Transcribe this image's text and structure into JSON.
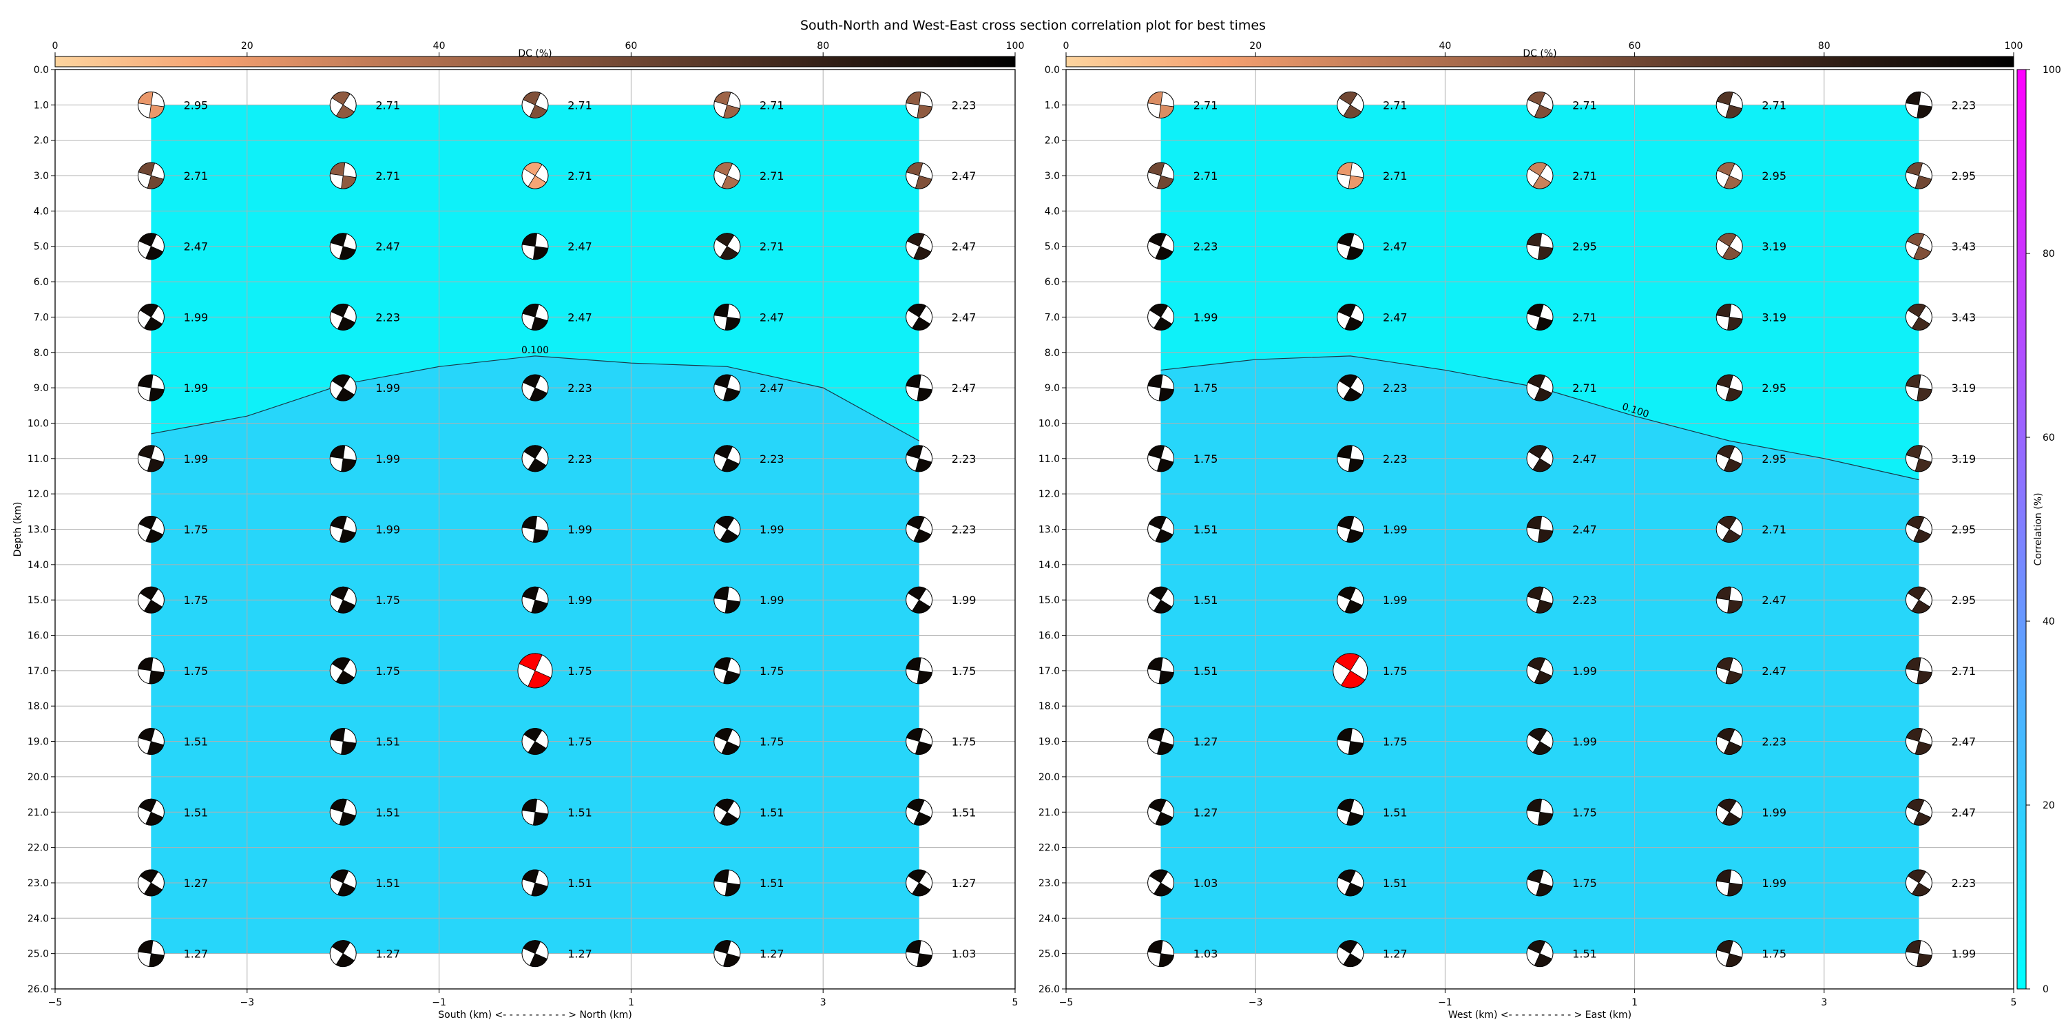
{
  "figure": {
    "title": "South-North and West-East cross section correlation plot for best times"
  },
  "colors": {
    "region_high": "#0ef1f9",
    "region_low": "#27d6fa",
    "focal_dark": "#000000",
    "best_solution": "#ff0000",
    "grid": "#b0b0b0",
    "dc_cmap": [
      "#fdd49e",
      "#f4a070",
      "#c07a56",
      "#8f5a40",
      "#5c3a2a",
      "#2a1a12",
      "#000000"
    ],
    "corr_cmap": [
      "#00ffff",
      "#ff00ff"
    ]
  },
  "colorbars": {
    "dc": {
      "label": "DC (%)",
      "ticks": [
        "0",
        "20",
        "40",
        "60",
        "80",
        "100"
      ]
    },
    "corr": {
      "label": "Correlation (%)",
      "ticks": [
        "0",
        "20",
        "40",
        "60",
        "80",
        "100"
      ]
    }
  },
  "chart_data": [
    {
      "type": "heatmap",
      "title": "",
      "xlabel": "South (km) <- - - - - - - - - - > North (km)",
      "ylabel": "Depth (km)",
      "xlim": [
        -5,
        5
      ],
      "ylim": [
        26,
        0
      ],
      "x_ticks": [
        "−5",
        "−3",
        "−1",
        "1",
        "3",
        "5"
      ],
      "y_ticks": [
        "0.0",
        "1.0",
        "2.0",
        "3.0",
        "4.0",
        "5.0",
        "6.0",
        "7.0",
        "8.0",
        "9.0",
        "10.0",
        "11.0",
        "12.0",
        "13.0",
        "14.0",
        "15.0",
        "16.0",
        "17.0",
        "18.0",
        "19.0",
        "20.0",
        "21.0",
        "22.0",
        "23.0",
        "24.0",
        "25.0",
        "26.0"
      ],
      "x_positions": [
        -4,
        -2,
        0,
        2,
        4
      ],
      "depths": [
        1,
        3,
        5,
        7,
        9,
        11,
        13,
        15,
        17,
        19,
        21,
        23,
        25
      ],
      "contour_label": "0.100",
      "contour": {
        "x": [
          -4.0,
          -3.0,
          -2.0,
          -1.0,
          0.0,
          1.0,
          2.0,
          3.0,
          4.0
        ],
        "depth": [
          10.3,
          9.8,
          8.9,
          8.4,
          8.1,
          8.3,
          8.4,
          9.0,
          10.5
        ]
      },
      "values": [
        [
          "2.95",
          "2.71",
          "2.71",
          "2.71",
          "2.23"
        ],
        [
          "2.71",
          "2.71",
          "2.71",
          "2.71",
          "2.47"
        ],
        [
          "2.47",
          "2.47",
          "2.47",
          "2.71",
          "2.47"
        ],
        [
          "1.99",
          "2.23",
          "2.47",
          "2.47",
          "2.47"
        ],
        [
          "1.99",
          "1.99",
          "2.23",
          "2.47",
          "2.47"
        ],
        [
          "1.99",
          "1.99",
          "2.23",
          "2.23",
          "2.23"
        ],
        [
          "1.75",
          "1.99",
          "1.99",
          "1.99",
          "2.23"
        ],
        [
          "1.75",
          "1.75",
          "1.99",
          "1.99",
          "1.99"
        ],
        [
          "1.75",
          "1.75",
          "1.75",
          "1.75",
          "1.75"
        ],
        [
          "1.51",
          "1.51",
          "1.75",
          "1.75",
          "1.75"
        ],
        [
          "1.51",
          "1.51",
          "1.51",
          "1.51",
          "1.51"
        ],
        [
          "1.27",
          "1.51",
          "1.51",
          "1.51",
          "1.27"
        ],
        [
          "1.27",
          "1.27",
          "1.27",
          "1.27",
          "1.03"
        ]
      ],
      "dc_percent": [
        [
          20,
          50,
          55,
          45,
          50
        ],
        [
          60,
          50,
          15,
          40,
          55
        ],
        [
          95,
          95,
          95,
          85,
          85
        ],
        [
          95,
          95,
          95,
          95,
          95
        ],
        [
          95,
          95,
          95,
          95,
          95
        ],
        [
          90,
          95,
          95,
          95,
          95
        ],
        [
          95,
          95,
          95,
          95,
          95
        ],
        [
          95,
          95,
          95,
          95,
          95
        ],
        [
          95,
          95,
          95,
          95,
          95
        ],
        [
          95,
          95,
          95,
          95,
          95
        ],
        [
          95,
          95,
          95,
          95,
          95
        ],
        [
          95,
          95,
          95,
          95,
          95
        ],
        [
          95,
          95,
          95,
          95,
          95
        ]
      ],
      "best": {
        "x": 0,
        "depth": 17
      }
    },
    {
      "type": "heatmap",
      "title": "",
      "xlabel": "West (km) <- - - - - - - - - - > East (km)",
      "ylabel": "",
      "xlim": [
        -5,
        5
      ],
      "ylim": [
        26,
        0
      ],
      "x_ticks": [
        "−5",
        "−3",
        "−1",
        "1",
        "3",
        "5"
      ],
      "y_ticks": [
        "0.0",
        "1.0",
        "2.0",
        "3.0",
        "4.0",
        "5.0",
        "6.0",
        "7.0",
        "8.0",
        "9.0",
        "10.0",
        "11.0",
        "12.0",
        "13.0",
        "14.0",
        "15.0",
        "16.0",
        "17.0",
        "18.0",
        "19.0",
        "20.0",
        "21.0",
        "22.0",
        "23.0",
        "24.0",
        "25.0",
        "26.0"
      ],
      "x_positions": [
        -4,
        -2,
        0,
        2,
        4
      ],
      "depths": [
        1,
        3,
        5,
        7,
        9,
        11,
        13,
        15,
        17,
        19,
        21,
        23,
        25
      ],
      "contour_label": "0.100",
      "contour": {
        "x": [
          -4.0,
          -3.0,
          -2.0,
          -1.0,
          0.0,
          1.0,
          2.0,
          3.0,
          4.0
        ],
        "depth": [
          8.5,
          8.2,
          8.1,
          8.5,
          9.0,
          9.8,
          10.5,
          11.0,
          11.6
        ]
      },
      "values": [
        [
          "2.71",
          "2.71",
          "2.71",
          "2.71",
          "2.23"
        ],
        [
          "2.71",
          "2.71",
          "2.71",
          "2.95",
          "2.95"
        ],
        [
          "2.23",
          "2.47",
          "2.95",
          "3.19",
          "3.43"
        ],
        [
          "1.99",
          "2.47",
          "2.71",
          "3.19",
          "3.43"
        ],
        [
          "1.75",
          "2.23",
          "2.71",
          "2.95",
          "3.19"
        ],
        [
          "1.75",
          "2.23",
          "2.47",
          "2.95",
          "3.19"
        ],
        [
          "1.51",
          "1.99",
          "2.47",
          "2.71",
          "2.95"
        ],
        [
          "1.51",
          "1.99",
          "2.23",
          "2.47",
          "2.95"
        ],
        [
          "1.51",
          "1.75",
          "1.99",
          "2.47",
          "2.71"
        ],
        [
          "1.27",
          "1.75",
          "1.99",
          "2.23",
          "2.47"
        ],
        [
          "1.27",
          "1.51",
          "1.75",
          "1.99",
          "2.47"
        ],
        [
          "1.03",
          "1.51",
          "1.75",
          "1.99",
          "2.23"
        ],
        [
          "1.03",
          "1.27",
          "1.51",
          "1.75",
          "1.99"
        ]
      ],
      "dc_percent": [
        [
          25,
          60,
          55,
          70,
          90
        ],
        [
          60,
          20,
          30,
          45,
          60
        ],
        [
          95,
          95,
          80,
          55,
          55
        ],
        [
          95,
          95,
          95,
          80,
          75
        ],
        [
          95,
          95,
          85,
          80,
          75
        ],
        [
          95,
          95,
          85,
          80,
          75
        ],
        [
          95,
          95,
          85,
          80,
          80
        ],
        [
          95,
          95,
          85,
          80,
          80
        ],
        [
          95,
          95,
          85,
          80,
          80
        ],
        [
          95,
          95,
          90,
          85,
          80
        ],
        [
          95,
          95,
          90,
          85,
          80
        ],
        [
          95,
          95,
          90,
          85,
          80
        ],
        [
          95,
          95,
          90,
          85,
          80
        ]
      ],
      "best": {
        "x": -2,
        "depth": 17
      }
    }
  ]
}
